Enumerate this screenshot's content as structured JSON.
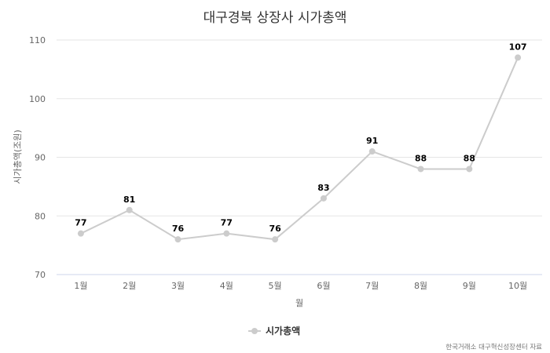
{
  "title": "대구경북 상장사 시가총액",
  "legend": {
    "label": "시가총액",
    "icon": "line-with-dot-marker"
  },
  "source": "한국거래소 대구혁신성장센터 자료",
  "colors": {
    "series": "#cccccc",
    "grid": "#e6e6e6",
    "axis": "#ccd6eb",
    "label": "#000000",
    "tick": "#666666"
  },
  "chart_data": {
    "type": "line",
    "title": "대구경북 상장사 시가총액",
    "xlabel": "월",
    "ylabel": "시가총액(조원)",
    "categories": [
      "1월",
      "2월",
      "3월",
      "4월",
      "5월",
      "6월",
      "7월",
      "8월",
      "9월",
      "10월"
    ],
    "series": [
      {
        "name": "시가총액",
        "values": [
          77,
          81,
          76,
          77,
          76,
          83,
          91,
          88,
          88,
          107
        ]
      }
    ],
    "ylim": [
      70,
      110
    ],
    "yticks": [
      70,
      80,
      90,
      100,
      110
    ],
    "grid": true,
    "data_labels": true,
    "legend_position": "bottom-center"
  }
}
